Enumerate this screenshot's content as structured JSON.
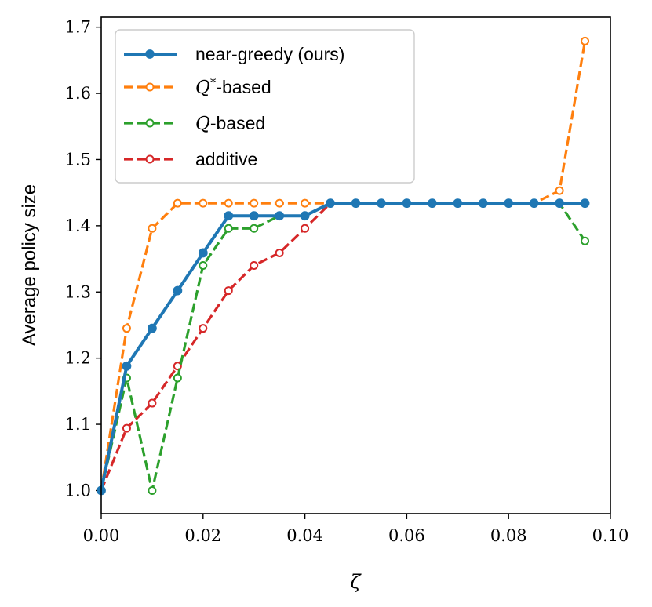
{
  "chart_data": {
    "type": "line",
    "xlabel": "ζ",
    "ylabel": "Average policy size",
    "xlim": [
      0.0,
      0.1
    ],
    "ylim": [
      0.965,
      1.715
    ],
    "x_ticks": [
      0.0,
      0.02,
      0.04,
      0.06,
      0.08,
      0.1
    ],
    "x_tick_labels": [
      "0.00",
      "0.02",
      "0.04",
      "0.06",
      "0.08",
      "0.10"
    ],
    "y_ticks": [
      1.0,
      1.1,
      1.2,
      1.3,
      1.4,
      1.5,
      1.6,
      1.7
    ],
    "y_tick_labels": [
      "1.0",
      "1.1",
      "1.2",
      "1.3",
      "1.4",
      "1.5",
      "1.6",
      "1.7"
    ],
    "legend_position": "top-left",
    "series": [
      {
        "name": "near-greedy (ours)",
        "legend_label": "near-greedy (ours)",
        "color": "#1f77b4",
        "style": "solid",
        "marker": "filled",
        "x": [
          0.0,
          0.005,
          0.01,
          0.015,
          0.02,
          0.025,
          0.03,
          0.035,
          0.04,
          0.045,
          0.05,
          0.055,
          0.06,
          0.065,
          0.07,
          0.075,
          0.08,
          0.085,
          0.09,
          0.095
        ],
        "y": [
          1.0,
          1.188,
          1.245,
          1.302,
          1.359,
          1.415,
          1.415,
          1.415,
          1.415,
          1.434,
          1.434,
          1.434,
          1.434,
          1.434,
          1.434,
          1.434,
          1.434,
          1.434,
          1.434,
          1.434
        ]
      },
      {
        "name": "Q*-based",
        "legend_label": "-based",
        "legend_math": "Q",
        "legend_sup": "*",
        "color": "#ff7f0e",
        "style": "dashed",
        "marker": "open",
        "x": [
          0.0,
          0.005,
          0.01,
          0.015,
          0.02,
          0.025,
          0.03,
          0.035,
          0.04,
          0.045,
          0.05,
          0.055,
          0.06,
          0.065,
          0.07,
          0.075,
          0.08,
          0.085,
          0.09,
          0.095
        ],
        "y": [
          1.0,
          1.245,
          1.396,
          1.434,
          1.434,
          1.434,
          1.434,
          1.434,
          1.434,
          1.434,
          1.434,
          1.434,
          1.434,
          1.434,
          1.434,
          1.434,
          1.434,
          1.434,
          1.453,
          1.679
        ]
      },
      {
        "name": "Q-based",
        "legend_label": "-based",
        "legend_math": "Q",
        "color": "#2ca02c",
        "style": "dashed",
        "marker": "open",
        "x": [
          0.0,
          0.005,
          0.01,
          0.015,
          0.02,
          0.025,
          0.03,
          0.035,
          0.04,
          0.045,
          0.05,
          0.055,
          0.06,
          0.065,
          0.07,
          0.075,
          0.08,
          0.085,
          0.09,
          0.095
        ],
        "y": [
          1.0,
          1.17,
          1.0,
          1.17,
          1.34,
          1.396,
          1.396,
          1.415,
          1.415,
          1.434,
          1.434,
          1.434,
          1.434,
          1.434,
          1.434,
          1.434,
          1.434,
          1.434,
          1.434,
          1.377
        ]
      },
      {
        "name": "additive",
        "legend_label": "additive",
        "color": "#d62728",
        "style": "dashed",
        "marker": "open",
        "x": [
          0.0,
          0.005,
          0.01,
          0.015,
          0.02,
          0.025,
          0.03,
          0.035,
          0.04,
          0.045,
          0.05,
          0.055,
          0.06,
          0.065,
          0.07,
          0.075,
          0.08,
          0.085,
          0.09,
          0.095
        ],
        "y": [
          1.0,
          1.094,
          1.132,
          1.188,
          1.245,
          1.302,
          1.34,
          1.359,
          1.396,
          1.434,
          1.434,
          1.434,
          1.434,
          1.434,
          1.434,
          1.434,
          1.434,
          1.434,
          1.434,
          1.434
        ]
      }
    ]
  }
}
